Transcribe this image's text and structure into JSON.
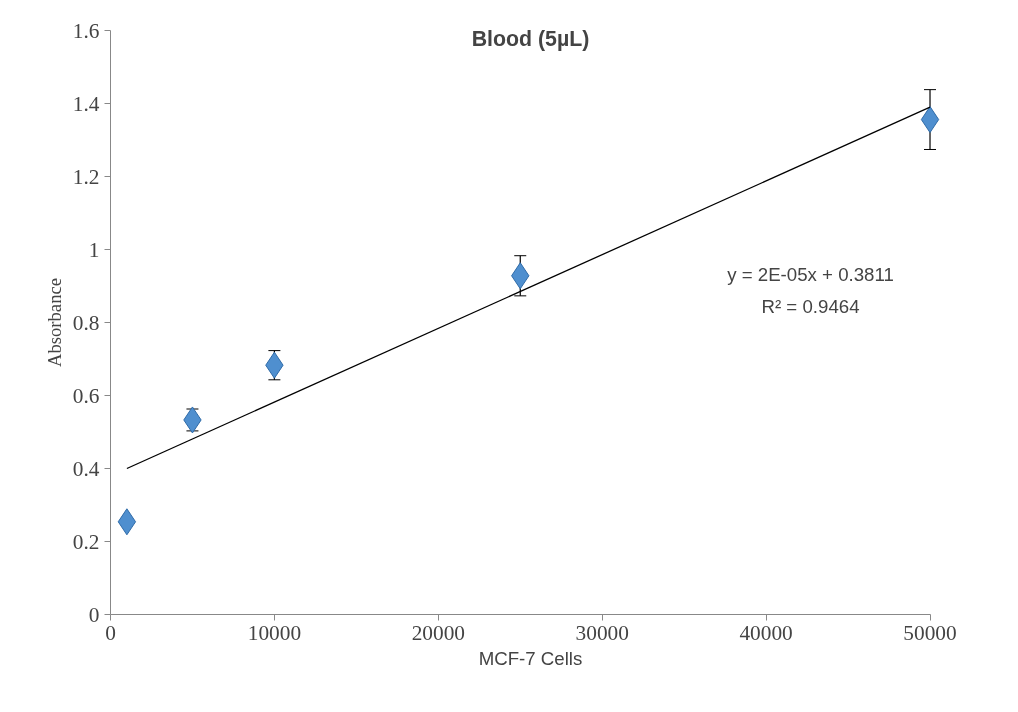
{
  "chart_data": {
    "type": "scatter",
    "title": "Blood (5µL)",
    "xlabel": "MCF-7 Cells",
    "ylabel": "Absorbance",
    "x": [
      1000,
      5000,
      10000,
      25000,
      50000
    ],
    "series": [
      {
        "color": "#4f8fcf",
        "values": [
          0.254,
          0.533,
          0.683,
          0.928,
          1.356
        ],
        "errors": [
          null,
          0.03,
          0.04,
          0.055,
          0.082
        ],
        "marker": "diamond"
      },
      {
        "type": "line",
        "color": "#000000",
        "x": [
          1000,
          50000
        ],
        "values": [
          0.4,
          1.39
        ],
        "marker": "none"
      }
    ],
    "annotations": [
      "y = 2E-05x + 0.3811",
      "R² = 0.9464"
    ],
    "xlim": [
      0,
      50000
    ],
    "ylim": [
      0,
      1.6
    ],
    "xticks": [
      0,
      10000,
      20000,
      30000,
      40000,
      50000
    ],
    "yticks": [
      0,
      0.2,
      0.4,
      0.6,
      0.8,
      1,
      1.2,
      1.4,
      1.6
    ],
    "grid": false
  }
}
